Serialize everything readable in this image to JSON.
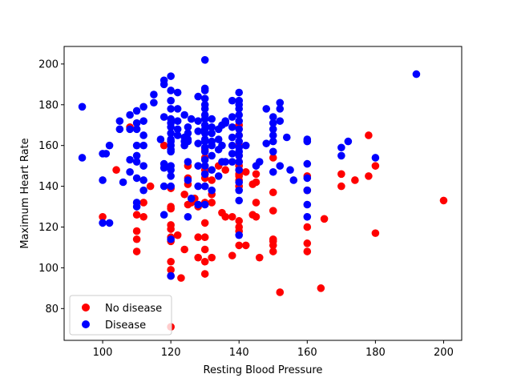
{
  "chart_data": {
    "type": "scatter",
    "title": "",
    "xlabel": "Resting Blood Pressure",
    "ylabel": "Maximum Heart Rate",
    "xlim": [
      88.7,
      205.3
    ],
    "ylim": [
      64.4,
      208.6
    ],
    "xticks": [
      100,
      120,
      140,
      160,
      180,
      200
    ],
    "yticks": [
      80,
      100,
      120,
      140,
      160,
      180,
      200
    ],
    "grid": false,
    "legend_position": "lower-left",
    "series": [
      {
        "name": "No disease",
        "color": "#ff0000",
        "points": [
          [
            100,
            125
          ],
          [
            104,
            148
          ],
          [
            108,
            169
          ],
          [
            110,
            108
          ],
          [
            110,
            114
          ],
          [
            110,
            118
          ],
          [
            110,
            126
          ],
          [
            112,
            125
          ],
          [
            112,
            132
          ],
          [
            114,
            140
          ],
          [
            118,
            160
          ],
          [
            120,
            71
          ],
          [
            120,
            96
          ],
          [
            120,
            99
          ],
          [
            120,
            103
          ],
          [
            120,
            113
          ],
          [
            120,
            115
          ],
          [
            120,
            119
          ],
          [
            120,
            121
          ],
          [
            120,
            129
          ],
          [
            120,
            130
          ],
          [
            120,
            139
          ],
          [
            122,
            116
          ],
          [
            123,
            95
          ],
          [
            124,
            109
          ],
          [
            124,
            136
          ],
          [
            125,
            131
          ],
          [
            125,
            141
          ],
          [
            125,
            144
          ],
          [
            125,
            150
          ],
          [
            126,
            132
          ],
          [
            127,
            134
          ],
          [
            128,
            105
          ],
          [
            128,
            130
          ],
          [
            128,
            131
          ],
          [
            128,
            115
          ],
          [
            130,
            97
          ],
          [
            130,
            103
          ],
          [
            130,
            109
          ],
          [
            130,
            115
          ],
          [
            130,
            122
          ],
          [
            130,
            132
          ],
          [
            130,
            140
          ],
          [
            130,
            144
          ],
          [
            130,
            146
          ],
          [
            130,
            148
          ],
          [
            130,
            150
          ],
          [
            130,
            154
          ],
          [
            130,
            158
          ],
          [
            132,
            105
          ],
          [
            132,
            132
          ],
          [
            132,
            136
          ],
          [
            132,
            143
          ],
          [
            134,
            150
          ],
          [
            135,
            127
          ],
          [
            136,
            125
          ],
          [
            136,
            148
          ],
          [
            138,
            106
          ],
          [
            138,
            125
          ],
          [
            140,
            111
          ],
          [
            140,
            118
          ],
          [
            140,
            120
          ],
          [
            140,
            123
          ],
          [
            140,
            140
          ],
          [
            140,
            143
          ],
          [
            140,
            145
          ],
          [
            140,
            146
          ],
          [
            140,
            148
          ],
          [
            140,
            150
          ],
          [
            140,
            152
          ],
          [
            140,
            155
          ],
          [
            140,
            160
          ],
          [
            140,
            165
          ],
          [
            140,
            170
          ],
          [
            142,
            111
          ],
          [
            142,
            147
          ],
          [
            144,
            126
          ],
          [
            144,
            141
          ],
          [
            145,
            125
          ],
          [
            145,
            132
          ],
          [
            145,
            142
          ],
          [
            145,
            146
          ],
          [
            146,
            105
          ],
          [
            150,
            108
          ],
          [
            150,
            111
          ],
          [
            150,
            113
          ],
          [
            150,
            114
          ],
          [
            150,
            128
          ],
          [
            150,
            137
          ],
          [
            150,
            154
          ],
          [
            152,
            88
          ],
          [
            160,
            108
          ],
          [
            160,
            112
          ],
          [
            160,
            120
          ],
          [
            160,
            138
          ],
          [
            160,
            145
          ],
          [
            164,
            90
          ],
          [
            165,
            124
          ],
          [
            170,
            140
          ],
          [
            170,
            146
          ],
          [
            174,
            143
          ],
          [
            178,
            145
          ],
          [
            178,
            165
          ],
          [
            180,
            117
          ],
          [
            180,
            150
          ],
          [
            200,
            133
          ]
        ]
      },
      {
        "name": "Disease",
        "color": "#0000ff",
        "points": [
          [
            94,
            154
          ],
          [
            94,
            179
          ],
          [
            100,
            122
          ],
          [
            100,
            143
          ],
          [
            100,
            156
          ],
          [
            101,
            156
          ],
          [
            102,
            122
          ],
          [
            102,
            160
          ],
          [
            105,
            168
          ],
          [
            105,
            172
          ],
          [
            106,
            142
          ],
          [
            108,
            147
          ],
          [
            108,
            153
          ],
          [
            108,
            168
          ],
          [
            108,
            175
          ],
          [
            110,
            130
          ],
          [
            110,
            132
          ],
          [
            110,
            144
          ],
          [
            110,
            152
          ],
          [
            110,
            155
          ],
          [
            110,
            160
          ],
          [
            110,
            168
          ],
          [
            110,
            171
          ],
          [
            110,
            177
          ],
          [
            112,
            138
          ],
          [
            112,
            143
          ],
          [
            112,
            150
          ],
          [
            112,
            160
          ],
          [
            112,
            165
          ],
          [
            112,
            172
          ],
          [
            112,
            179
          ],
          [
            115,
            181
          ],
          [
            115,
            185
          ],
          [
            117,
            163
          ],
          [
            118,
            126
          ],
          [
            118,
            140
          ],
          [
            118,
            149
          ],
          [
            118,
            151
          ],
          [
            118,
            174
          ],
          [
            118,
            190
          ],
          [
            118,
            192
          ],
          [
            120,
            96
          ],
          [
            120,
            114
          ],
          [
            120,
            140
          ],
          [
            120,
            145
          ],
          [
            120,
            148
          ],
          [
            120,
            150
          ],
          [
            120,
            157
          ],
          [
            120,
            158
          ],
          [
            120,
            160
          ],
          [
            120,
            162
          ],
          [
            120,
            163
          ],
          [
            120,
            166
          ],
          [
            120,
            169
          ],
          [
            120,
            171
          ],
          [
            120,
            173
          ],
          [
            120,
            178
          ],
          [
            120,
            182
          ],
          [
            120,
            187
          ],
          [
            120,
            194
          ],
          [
            122,
            165
          ],
          [
            122,
            168
          ],
          [
            122,
            172
          ],
          [
            122,
            178
          ],
          [
            122,
            186
          ],
          [
            124,
            160
          ],
          [
            124,
            162
          ],
          [
            124,
            164
          ],
          [
            124,
            175
          ],
          [
            125,
            125
          ],
          [
            125,
            143
          ],
          [
            125,
            152
          ],
          [
            125,
            162
          ],
          [
            125,
            163
          ],
          [
            125,
            166
          ],
          [
            125,
            169
          ],
          [
            126,
            134
          ],
          [
            126,
            173
          ],
          [
            128,
            131
          ],
          [
            128,
            140
          ],
          [
            128,
            150
          ],
          [
            128,
            161
          ],
          [
            128,
            167
          ],
          [
            128,
            172
          ],
          [
            128,
            184
          ],
          [
            130,
            131
          ],
          [
            130,
            140
          ],
          [
            130,
            146
          ],
          [
            130,
            150
          ],
          [
            130,
            153
          ],
          [
            130,
            157
          ],
          [
            130,
            159
          ],
          [
            130,
            162
          ],
          [
            130,
            163
          ],
          [
            130,
            166
          ],
          [
            130,
            168
          ],
          [
            130,
            170
          ],
          [
            130,
            173
          ],
          [
            130,
            175
          ],
          [
            130,
            178
          ],
          [
            130,
            180
          ],
          [
            130,
            183
          ],
          [
            130,
            187
          ],
          [
            130,
            188
          ],
          [
            130,
            202
          ],
          [
            132,
            138
          ],
          [
            132,
            148
          ],
          [
            132,
            155
          ],
          [
            132,
            160
          ],
          [
            132,
            162
          ],
          [
            132,
            166
          ],
          [
            132,
            169
          ],
          [
            132,
            173
          ],
          [
            134,
            145
          ],
          [
            134,
            158
          ],
          [
            134,
            163
          ],
          [
            134,
            168
          ],
          [
            135,
            152
          ],
          [
            135,
            160
          ],
          [
            135,
            170
          ],
          [
            136,
            152
          ],
          [
            136,
            171
          ],
          [
            136,
            172
          ],
          [
            138,
            152
          ],
          [
            138,
            156
          ],
          [
            138,
            160
          ],
          [
            138,
            164
          ],
          [
            138,
            169
          ],
          [
            138,
            174
          ],
          [
            138,
            182
          ],
          [
            140,
            116
          ],
          [
            140,
            133
          ],
          [
            140,
            138
          ],
          [
            140,
            142
          ],
          [
            140,
            148
          ],
          [
            140,
            152
          ],
          [
            140,
            155
          ],
          [
            140,
            157
          ],
          [
            140,
            159
          ],
          [
            140,
            162
          ],
          [
            140,
            165
          ],
          [
            140,
            168
          ],
          [
            140,
            172
          ],
          [
            140,
            175
          ],
          [
            140,
            178
          ],
          [
            140,
            180
          ],
          [
            140,
            182
          ],
          [
            140,
            186
          ],
          [
            142,
            160
          ],
          [
            145,
            150
          ],
          [
            146,
            152
          ],
          [
            148,
            161
          ],
          [
            148,
            178
          ],
          [
            150,
            147
          ],
          [
            150,
            157
          ],
          [
            150,
            162
          ],
          [
            150,
            165
          ],
          [
            150,
            168
          ],
          [
            150,
            171
          ],
          [
            150,
            174
          ],
          [
            152,
            150
          ],
          [
            152,
            172
          ],
          [
            152,
            178
          ],
          [
            152,
            181
          ],
          [
            154,
            164
          ],
          [
            155,
            148
          ],
          [
            156,
            143
          ],
          [
            160,
            125
          ],
          [
            160,
            131
          ],
          [
            160,
            138
          ],
          [
            160,
            144
          ],
          [
            160,
            151
          ],
          [
            160,
            162
          ],
          [
            160,
            163
          ],
          [
            170,
            155
          ],
          [
            170,
            159
          ],
          [
            172,
            162
          ],
          [
            180,
            154
          ],
          [
            192,
            195
          ]
        ]
      }
    ]
  }
}
